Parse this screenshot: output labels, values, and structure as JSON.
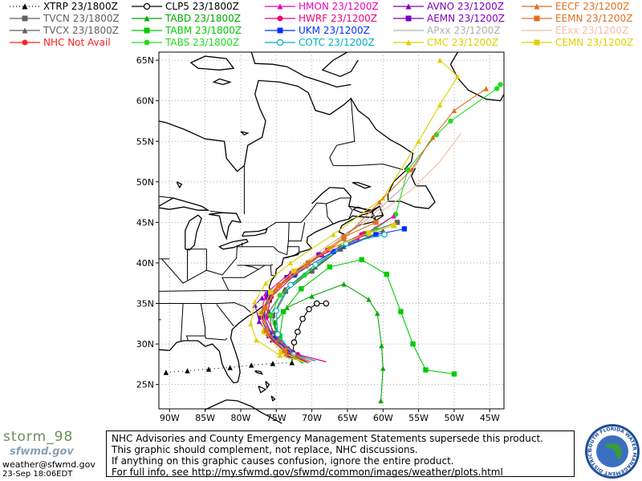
{
  "legend": [
    {
      "id": "xtrp",
      "text": "XTRP 23/1800Z",
      "color": "#000000",
      "marker": "triangle",
      "line": "dotted"
    },
    {
      "id": "tvcn",
      "text": "TVCN 23/1800Z",
      "color": "#606060",
      "marker": "square",
      "line": "solid"
    },
    {
      "id": "tvcx",
      "text": "TVCX 23/1800Z",
      "color": "#606060",
      "marker": "triangle",
      "line": "solid"
    },
    {
      "id": "nhc",
      "text": "NHC Not Avail",
      "color": "#ff2020",
      "marker": "circle",
      "line": "solid"
    },
    {
      "id": "clp5",
      "text": "CLP5 23/1800Z",
      "color": "#000000",
      "marker": "open-circle",
      "line": "solid"
    },
    {
      "id": "tabd",
      "text": "TABD 23/1800Z",
      "color": "#00aa00",
      "marker": "triangle",
      "line": "solid"
    },
    {
      "id": "tabm",
      "text": "TABM 23/1800Z",
      "color": "#00cc00",
      "marker": "square",
      "line": "solid"
    },
    {
      "id": "tabs",
      "text": "TABS 23/1800Z",
      "color": "#20dd20",
      "marker": "circle",
      "line": "solid"
    },
    {
      "id": "hmon",
      "text": "HMON 23/1200Z",
      "color": "#ee00bb",
      "marker": "triangle",
      "line": "solid"
    },
    {
      "id": "hwrf",
      "text": "HWRF 23/1200Z",
      "color": "#ee0077",
      "marker": "circle",
      "line": "solid"
    },
    {
      "id": "ukm",
      "text": "UKM 23/1200Z",
      "color": "#0030ff",
      "marker": "square",
      "line": "solid"
    },
    {
      "id": "cotc",
      "text": "COTC 23/1200Z",
      "color": "#00b0c0",
      "marker": "open-circle",
      "line": "solid"
    },
    {
      "id": "avno",
      "text": "AVNO 23/1200Z",
      "color": "#8000c0",
      "marker": "triangle",
      "line": "solid"
    },
    {
      "id": "aemn",
      "text": "AEMN 23/1200Z",
      "color": "#8000c0",
      "marker": "square",
      "line": "solid"
    },
    {
      "id": "apxx",
      "text": "APxx 23/1200Z",
      "color": "#b0b0b0",
      "marker": "none",
      "line": "solid"
    },
    {
      "id": "cmc",
      "text": "CMC 23/1200Z",
      "color": "#e0d000",
      "marker": "triangle",
      "line": "solid"
    },
    {
      "id": "eecf",
      "text": "EECF 23/1200Z",
      "color": "#e07020",
      "marker": "triangle",
      "line": "solid"
    },
    {
      "id": "eemn",
      "text": "EEMN 23/1200Z",
      "color": "#e07020",
      "marker": "square",
      "line": "solid"
    },
    {
      "id": "eexx",
      "text": "EExx 23/1200Z",
      "color": "#f0c0a0",
      "marker": "none",
      "line": "solid"
    },
    {
      "id": "cemn",
      "text": "CEMN 23/1200Z",
      "color": "#e0d000",
      "marker": "square",
      "line": "solid"
    }
  ],
  "map": {
    "lon_labels": [
      "90W",
      "85W",
      "80W",
      "75W",
      "70W",
      "65W",
      "60W",
      "55W",
      "50W",
      "45W"
    ],
    "lat_labels": [
      "65N",
      "60N",
      "55N",
      "50N",
      "45N",
      "40N",
      "35N",
      "30N",
      "25N"
    ],
    "lon_range": [
      -91.5,
      -43
    ],
    "lat_range": [
      22,
      66
    ],
    "grid": true
  },
  "tracks": {
    "xtrp": [
      [
        -90.5,
        26.5
      ],
      [
        -87.5,
        26.7
      ],
      [
        -84.5,
        26.9
      ],
      [
        -81.5,
        27.1
      ],
      [
        -78.5,
        27.4
      ],
      [
        -75.5,
        27.6
      ],
      [
        -72.8,
        27.7
      ]
    ],
    "clp5": [
      [
        -72.8,
        27.8
      ],
      [
        -72.7,
        28.9
      ],
      [
        -72.5,
        30.2
      ],
      [
        -72.0,
        31.5
      ],
      [
        -71.3,
        33.1
      ],
      [
        -70.4,
        34.3
      ],
      [
        -69.3,
        35.0
      ],
      [
        -68.0,
        35.0
      ]
    ],
    "tabd": [
      [
        -71.2,
        27.6
      ],
      [
        -73.0,
        28.5
      ],
      [
        -74.6,
        30.3
      ],
      [
        -75.2,
        32.7
      ],
      [
        -73.5,
        34.5
      ],
      [
        -70.0,
        35.9
      ],
      [
        -65.5,
        37.4
      ],
      [
        -62.0,
        35.5
      ],
      [
        -60.8,
        33.8
      ],
      [
        -60.2,
        29.8
      ],
      [
        -60.0,
        27.0
      ],
      [
        -60.3,
        23.0
      ]
    ],
    "tabm": [
      [
        -71.0,
        27.7
      ],
      [
        -72.8,
        28.7
      ],
      [
        -74.5,
        31.0
      ],
      [
        -74.0,
        34.0
      ],
      [
        -71.5,
        36.8
      ],
      [
        -67.5,
        39.5
      ],
      [
        -63.0,
        40.4
      ],
      [
        -59.5,
        38.6
      ],
      [
        -57.5,
        34.0
      ],
      [
        -55.8,
        30.0
      ],
      [
        -54.0,
        26.8
      ],
      [
        -50.0,
        26.3
      ]
    ],
    "tabs": [
      [
        -71.0,
        27.7
      ],
      [
        -72.7,
        28.8
      ],
      [
        -74.7,
        30.5
      ],
      [
        -75.8,
        33.5
      ],
      [
        -74.5,
        36.0
      ],
      [
        -71.0,
        38.5
      ],
      [
        -66.0,
        42.0
      ],
      [
        -61.0,
        44.2
      ],
      [
        -58.2,
        46.0
      ],
      [
        -56.5,
        51.5
      ],
      [
        -52.5,
        55.8
      ],
      [
        -50.5,
        57.5
      ],
      [
        -44.0,
        61.5
      ],
      [
        -43.5,
        62.0
      ]
    ],
    "tvcn": [
      [
        -72.3,
        28.3
      ],
      [
        -73.5,
        29.4
      ],
      [
        -75.0,
        31.3
      ],
      [
        -75.5,
        33.5
      ],
      [
        -73.7,
        36.5
      ],
      [
        -70.0,
        39.0
      ],
      [
        -66.0,
        41.7
      ],
      [
        -62.5,
        43.6
      ],
      [
        -58.0,
        45.0
      ]
    ],
    "tvcx": [
      [
        -72.3,
        28.3
      ],
      [
        -73.8,
        29.5
      ],
      [
        -75.6,
        31.5
      ],
      [
        -76.0,
        34.0
      ],
      [
        -73.8,
        36.8
      ],
      [
        -69.5,
        39.5
      ],
      [
        -65.5,
        42.0
      ],
      [
        -60.0,
        44.0
      ]
    ],
    "hmon": [
      [
        -68.0,
        27.8
      ],
      [
        -72.0,
        28.7
      ],
      [
        -75.3,
        30.6
      ],
      [
        -77.2,
        33.5
      ],
      [
        -76.5,
        36.2
      ],
      [
        -73.0,
        38.8
      ],
      [
        -68.5,
        41.0
      ],
      [
        -63.5,
        43.0
      ],
      [
        -58.5,
        45.8
      ]
    ],
    "hwrf": [
      [
        -68.0,
        27.8
      ],
      [
        -72.0,
        28.7
      ],
      [
        -75.0,
        30.8
      ],
      [
        -76.4,
        33.3
      ],
      [
        -75.7,
        35.8
      ],
      [
        -72.3,
        38.6
      ],
      [
        -67.8,
        41.6
      ],
      [
        -63.0,
        43.5
      ]
    ],
    "ukm": [
      [
        -69.5,
        27.9
      ],
      [
        -72.8,
        28.8
      ],
      [
        -75.4,
        30.7
      ],
      [
        -76.8,
        33.5
      ],
      [
        -76.0,
        36.3
      ],
      [
        -72.5,
        38.5
      ],
      [
        -67.0,
        41.4
      ],
      [
        -61.0,
        43.5
      ],
      [
        -57.0,
        44.2
      ]
    ],
    "cotc": [
      [
        -69.5,
        27.9
      ],
      [
        -72.6,
        28.7
      ],
      [
        -74.8,
        31.2
      ],
      [
        -75.0,
        34.1
      ],
      [
        -73.0,
        37.3
      ],
      [
        -69.5,
        39.8
      ],
      [
        -65.2,
        42.4
      ],
      [
        -59.8,
        43.5
      ]
    ],
    "avno": [
      [
        -70.5,
        27.7
      ],
      [
        -73.3,
        28.6
      ],
      [
        -75.6,
        30.5
      ],
      [
        -77.4,
        32.8
      ],
      [
        -78.0,
        34.8
      ],
      [
        -77.0,
        35.7
      ]
    ],
    "aemn": [
      [
        -70.5,
        27.7
      ],
      [
        -73.5,
        28.9
      ],
      [
        -76.0,
        31.0
      ],
      [
        -77.2,
        33.3
      ],
      [
        -76.2,
        35.7
      ],
      [
        -73.5,
        38.2
      ],
      [
        -69.0,
        41.0
      ]
    ],
    "cmc": [
      [
        -70.8,
        27.7
      ],
      [
        -74.5,
        28.6
      ],
      [
        -77.8,
        30.5
      ],
      [
        -78.6,
        32.5
      ],
      [
        -78.0,
        35.2
      ],
      [
        -76.5,
        37.5
      ],
      [
        -73.0,
        40.0
      ],
      [
        -67.0,
        43.5
      ],
      [
        -60.0,
        48.0
      ],
      [
        -55.0,
        55.0
      ],
      [
        -52.0,
        59.5
      ],
      [
        -49.5,
        63.0
      ],
      [
        -52.0,
        65.0
      ]
    ],
    "cemn": [
      [
        -70.8,
        27.7
      ],
      [
        -74.3,
        29.0
      ],
      [
        -76.7,
        31.5
      ],
      [
        -77.2,
        33.8
      ],
      [
        -75.8,
        36.4
      ],
      [
        -72.5,
        39.0
      ],
      [
        -67.5,
        41.8
      ],
      [
        -62.0,
        43.7
      ],
      [
        -58.5,
        44.6
      ]
    ],
    "eecf": [
      [
        -70.2,
        27.8
      ],
      [
        -73.6,
        28.8
      ],
      [
        -76.2,
        31.3
      ],
      [
        -77.0,
        34.0
      ],
      [
        -75.0,
        36.8
      ],
      [
        -70.8,
        39.6
      ],
      [
        -65.5,
        43.0
      ],
      [
        -60.5,
        47.5
      ],
      [
        -56.0,
        51.5
      ],
      [
        -53.0,
        55.5
      ],
      [
        -50.0,
        58.8
      ],
      [
        -45.5,
        61.5
      ]
    ],
    "eemn": [
      [
        -70.2,
        27.8
      ],
      [
        -73.8,
        29.2
      ],
      [
        -76.4,
        31.7
      ],
      [
        -76.6,
        34.4
      ],
      [
        -74.6,
        37.2
      ],
      [
        -70.5,
        40.0
      ],
      [
        -65.5,
        43.2
      ],
      [
        -61.0,
        45.0
      ]
    ],
    "apxx": [
      [
        -70.0,
        27.8
      ],
      [
        -74.0,
        29.0
      ],
      [
        -76.5,
        32.0
      ],
      [
        -76.0,
        35.5
      ],
      [
        -73.0,
        38.5
      ],
      [
        -68.0,
        42.0
      ],
      [
        -62.0,
        45.5
      ],
      [
        -57.0,
        49.5
      ],
      [
        -53.5,
        55.0
      ]
    ],
    "eexx": [
      [
        -70.2,
        27.8
      ],
      [
        -74.0,
        29.3
      ],
      [
        -76.5,
        32.0
      ],
      [
        -76.3,
        35.0
      ],
      [
        -73.5,
        38.3
      ],
      [
        -68.0,
        42.0
      ],
      [
        -61.5,
        45.5
      ],
      [
        -56.0,
        49.0
      ],
      [
        -52.0,
        52.5
      ],
      [
        -49.0,
        56.0
      ]
    ]
  },
  "footer": {
    "logo_name": "storm_98",
    "logo_sub": "sfwmd.gov",
    "email": "weather@sfwmd.gov",
    "date": "23-Sep 18:06EDT",
    "notice_lines": [
      "NHC Advisories and County Emergency Management Statements supersede this product.",
      "This graphic should complement, not replace, NHC discussions.",
      "If anything on this graphic causes confusion, ignore the entire product.",
      "For full info, see  http://my.sfwmd.gov/sfwmd/common/images/weather/plots.html"
    ],
    "seal_text": "SOUTH FLORIDA WATER MANAGEMENT DISTRICT"
  }
}
